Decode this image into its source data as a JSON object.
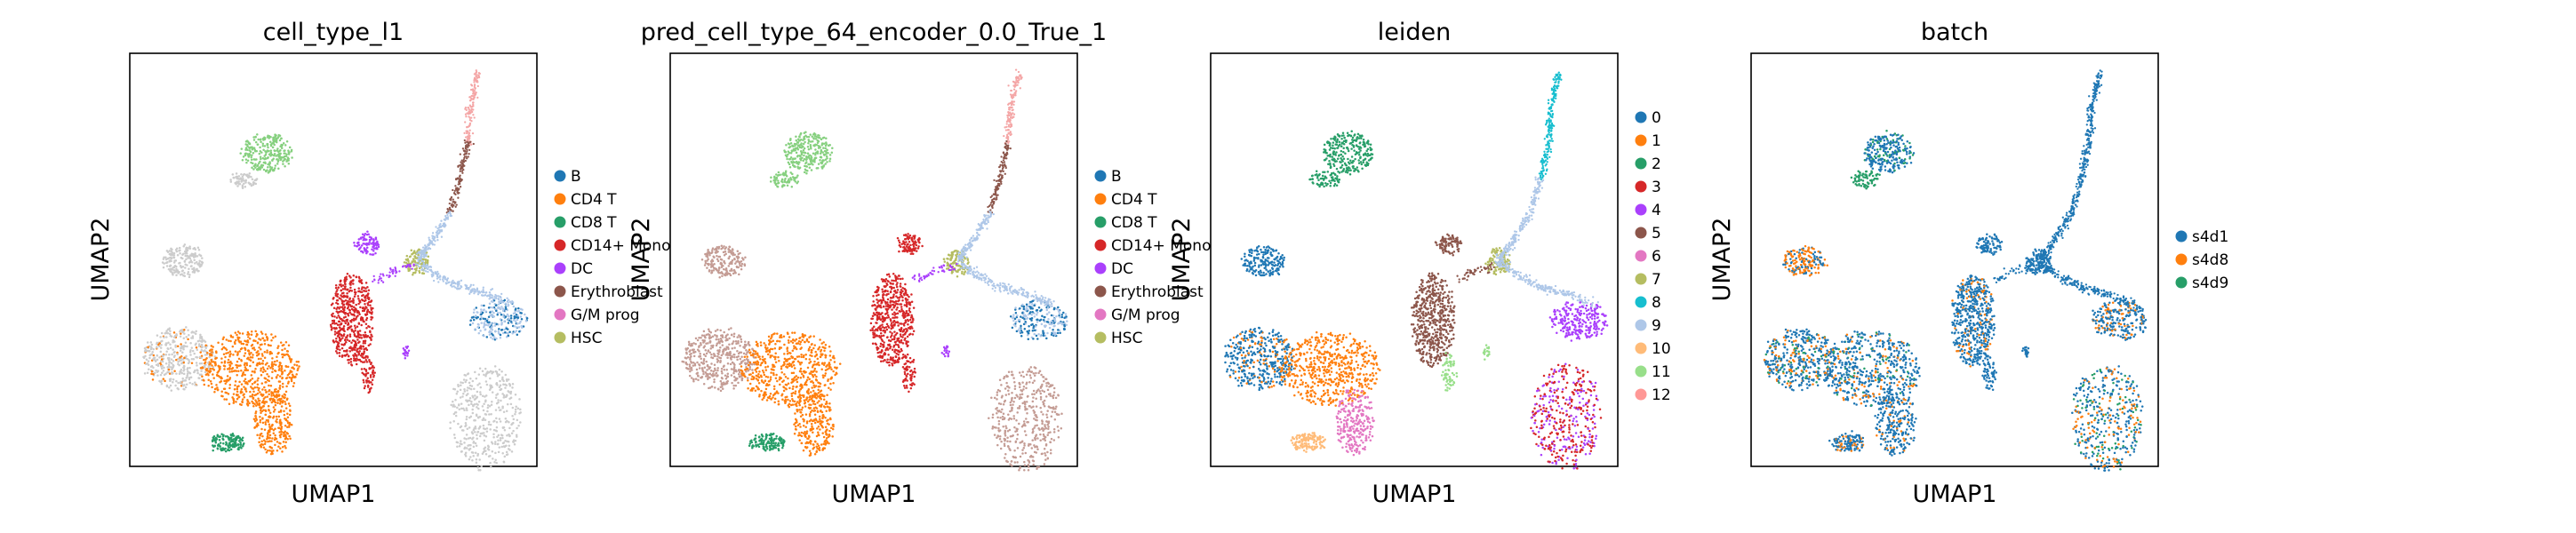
{
  "figure": {
    "xlabel": "UMAP1",
    "ylabel": "UMAP2"
  },
  "chart_data": [
    {
      "type": "scatter",
      "title": "cell_type_l1",
      "xlabel": "UMAP1",
      "ylabel": "UMAP2",
      "grid": false,
      "legend_placement": "right",
      "legend": [
        {
          "name": "B",
          "color": "#1f77b4"
        },
        {
          "name": "CD4 T",
          "color": "#ff7f0e"
        },
        {
          "name": "CD8 T",
          "color": "#279e68"
        },
        {
          "name": "CD14+ Mono",
          "color": "#d62728"
        },
        {
          "name": "DC",
          "color": "#aa40fc"
        },
        {
          "name": "Erythroblast",
          "color": "#8c564b"
        },
        {
          "name": "G/M prog",
          "color": "#e377c2"
        },
        {
          "name": "HSC",
          "color": "#b5bd61"
        }
      ],
      "clusters": [
        {
          "label": "CD8 T",
          "color": "#86d07f"
        },
        {
          "label": "B",
          "color": "#cccccc"
        },
        {
          "label": "CD4 T",
          "color": "#ff7f0e"
        },
        {
          "label": "CD8 T",
          "color": "#279e68"
        },
        {
          "label": "CD14+ Mono",
          "color": "#d62728"
        },
        {
          "label": "DC",
          "color": "#aa40fc"
        },
        {
          "label": "Erythroblast",
          "color": "#8c564b"
        },
        {
          "label": "G/M prog",
          "color": "#e377c2"
        },
        {
          "label": "HSC",
          "color": "#b5bd61"
        },
        {
          "label": "B",
          "color": "#1f77b4"
        }
      ]
    },
    {
      "type": "scatter",
      "title": "pred_cell_type_64_encoder_0.0_True_1",
      "xlabel": "UMAP1",
      "ylabel": "UMAP2",
      "grid": false,
      "legend_placement": "right",
      "legend": [
        {
          "name": "B",
          "color": "#1f77b4"
        },
        {
          "name": "CD4 T",
          "color": "#ff7f0e"
        },
        {
          "name": "CD8 T",
          "color": "#279e68"
        },
        {
          "name": "CD14+ Mono",
          "color": "#d62728"
        },
        {
          "name": "DC",
          "color": "#aa40fc"
        },
        {
          "name": "Erythroblast",
          "color": "#8c564b"
        },
        {
          "name": "G/M prog",
          "color": "#e377c2"
        },
        {
          "name": "HSC",
          "color": "#b5bd61"
        }
      ]
    },
    {
      "type": "scatter",
      "title": "leiden",
      "xlabel": "UMAP1",
      "ylabel": "UMAP2",
      "grid": false,
      "legend_placement": "right",
      "legend": [
        {
          "name": "0",
          "color": "#1f77b4"
        },
        {
          "name": "1",
          "color": "#ff7f0e"
        },
        {
          "name": "2",
          "color": "#279e68"
        },
        {
          "name": "3",
          "color": "#d62728"
        },
        {
          "name": "4",
          "color": "#aa40fc"
        },
        {
          "name": "5",
          "color": "#8c564b"
        },
        {
          "name": "6",
          "color": "#e377c2"
        },
        {
          "name": "7",
          "color": "#b5bd61"
        },
        {
          "name": "8",
          "color": "#17becf"
        },
        {
          "name": "9",
          "color": "#aec7e8"
        },
        {
          "name": "10",
          "color": "#ffbb78"
        },
        {
          "name": "11",
          "color": "#98df8a"
        },
        {
          "name": "12",
          "color": "#ff9896"
        }
      ]
    },
    {
      "type": "scatter",
      "title": "batch",
      "xlabel": "UMAP1",
      "ylabel": "UMAP2",
      "grid": false,
      "legend_placement": "right",
      "legend": [
        {
          "name": "s4d1",
          "color": "#1f77b4"
        },
        {
          "name": "s4d8",
          "color": "#ff7f0e"
        },
        {
          "name": "s4d9",
          "color": "#279e68"
        }
      ]
    }
  ]
}
